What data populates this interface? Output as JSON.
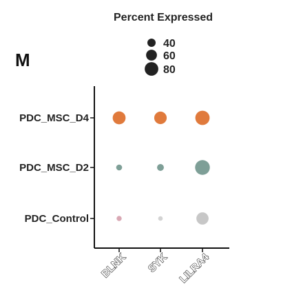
{
  "panel_label": "M",
  "chart_data": {
    "type": "scatter",
    "subtype": "dot-plot",
    "title": "",
    "xlabel": "",
    "ylabel": "",
    "categories_x": [
      "BLNK",
      "SYK",
      "LILRA4"
    ],
    "categories_y": [
      "PDC_MSC_D4",
      "PDC_MSC_D2",
      "PDC_Control"
    ],
    "size_legend": {
      "title": "Percent Expressed",
      "values": [
        40,
        60,
        80
      ],
      "labels": [
        "40",
        "60",
        "80"
      ],
      "placement": "top-center"
    },
    "series": [
      {
        "row": "PDC_MSC_D4",
        "color": "#E07A3C",
        "percent_expressed": [
          75,
          72,
          85
        ]
      },
      {
        "row": "PDC_MSC_D2",
        "color": "#7E9F97",
        "percent_expressed": [
          20,
          28,
          88
        ]
      },
      {
        "row": "PDC_Control",
        "color": "#C7C7C7",
        "point_colors": [
          "#D9A8B4",
          "#D3D3D3",
          "#C7C7C7"
        ],
        "percent_expressed": [
          12,
          6,
          70
        ]
      }
    ],
    "grid": false,
    "legend_color": "#222222"
  }
}
